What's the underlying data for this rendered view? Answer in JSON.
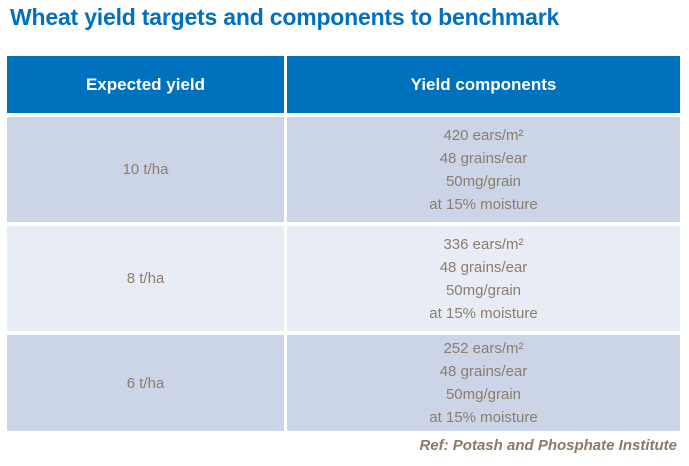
{
  "title": "Wheat yield targets and components to benchmark",
  "table": {
    "columns": [
      "Expected yield",
      "Yield components"
    ],
    "rows": [
      {
        "expected_yield": "10 t/ha",
        "components": [
          "420 ears/m²",
          "48 grains/ear",
          "50mg/grain",
          "at 15% moisture"
        ]
      },
      {
        "expected_yield": "8 t/ha",
        "components": [
          "336 ears/m²",
          "48 grains/ear",
          "50mg/grain",
          "at 15% moisture"
        ]
      },
      {
        "expected_yield": "6 t/ha",
        "components": [
          "252 ears/m²",
          "48 grains/ear",
          "50mg/grain",
          "at 15% moisture"
        ]
      }
    ]
  },
  "footer": {
    "reference": "Ref: Potash and Phosphate Institute"
  },
  "colors": {
    "title_blue": "#0070C0",
    "header_background": "#0071BD",
    "header_text": "#FFFFFF",
    "row_dark": "#CBD5E7",
    "row_light": "#E8ECF5",
    "cell_text": "#8C7D6C",
    "reference_text": "#8A7964"
  }
}
